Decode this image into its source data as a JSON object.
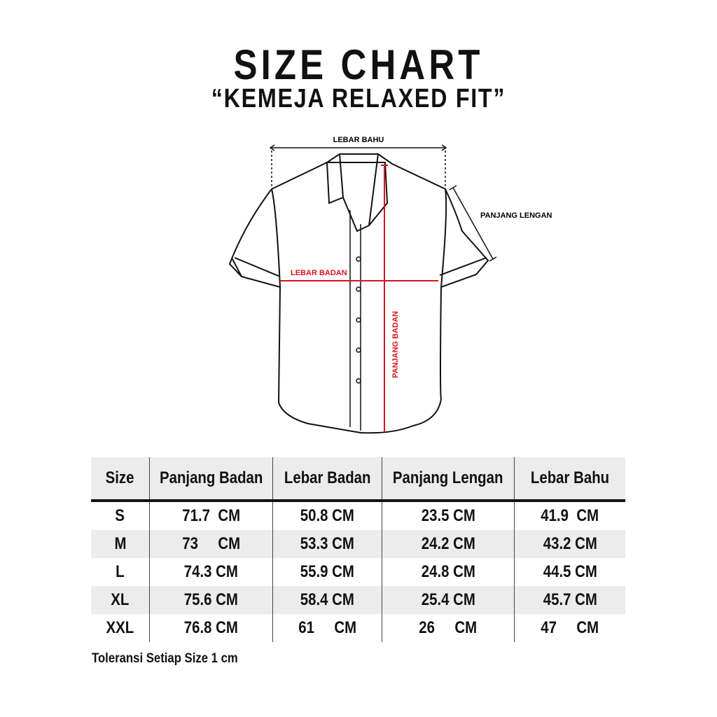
{
  "title": "SIZE CHART",
  "subtitle": "“KEMEJA RELAXED FIT”",
  "diagram": {
    "lebar_bahu": "LEBAR BAHU",
    "panjang_lengan": "PANJANG LENGAN",
    "lebar_badan": "LEBAR BADAN",
    "panjang_badan": "PANJANG BADAN",
    "accent_color": "#d9141c"
  },
  "table": {
    "headers": [
      "Size",
      "Panjang Badan",
      "Lebar Badan",
      "Panjang Lengan",
      "Lebar Bahu"
    ],
    "rows": [
      [
        "S",
        "71.7  CM",
        "50.8 CM",
        "23.5 CM",
        "41.9  CM"
      ],
      [
        "M",
        "73     CM",
        "53.3 CM",
        "24.2 CM",
        "43.2 CM"
      ],
      [
        "L",
        "74.3 CM",
        "55.9 CM",
        "24.8 CM",
        "44.5 CM"
      ],
      [
        "XL",
        "75.6 CM",
        "58.4 CM",
        "25.4 CM",
        "45.7 CM"
      ],
      [
        "XXL",
        "76.8 CM",
        "61     CM",
        "26     CM",
        "47     CM"
      ]
    ]
  },
  "note": "Toleransi Setiap Size 1 cm"
}
